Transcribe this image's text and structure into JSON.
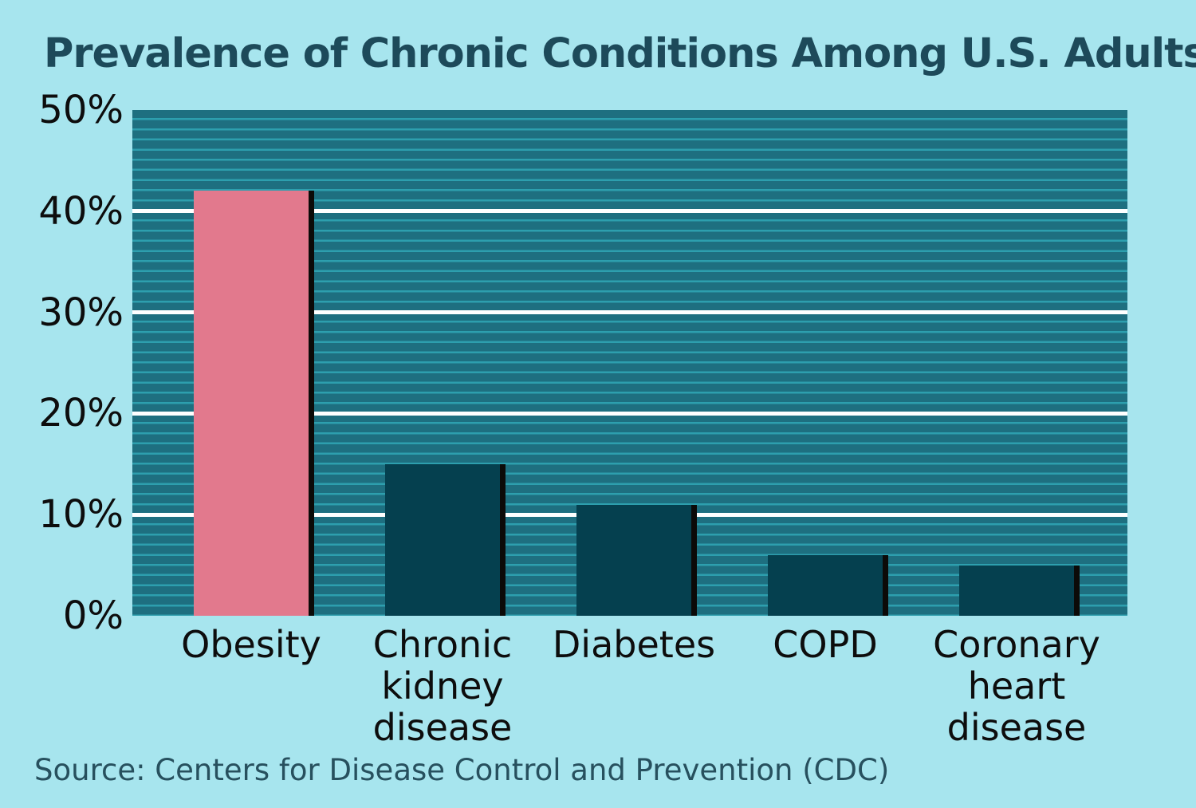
{
  "page": {
    "background_color": "#a7e5ee"
  },
  "header": {
    "title": "Prevalence of Chronic Conditions Among U.S. Adults",
    "title_color": "#1d4a5a"
  },
  "footer": {
    "source": "Source: Centers for Disease Control and Prevention (CDC)",
    "source_color": "#27505e"
  },
  "chart_data": {
    "type": "bar",
    "title": "Prevalence of Chronic Conditions Among U.S. Adults",
    "xlabel": "",
    "ylabel": "",
    "categories": [
      "Obesity",
      "Chronic kidney disease",
      "Diabetes",
      "COPD",
      "Coronary heart disease"
    ],
    "category_label_lines": [
      [
        "Obesity"
      ],
      [
        "Chronic",
        "kidney",
        "disease"
      ],
      [
        "Diabetes"
      ],
      [
        "COPD"
      ],
      [
        "Coronary",
        "heart",
        "disease"
      ]
    ],
    "values": [
      42,
      15,
      11,
      6,
      5
    ],
    "unit": "%",
    "ylim": [
      0,
      50
    ],
    "ytick_step": 10,
    "ytick_labels": [
      "0%",
      "10%",
      "20%",
      "30%",
      "40%",
      "50%"
    ],
    "grid": "horizontal white lines at 10% steps, behind bars",
    "legend": "none",
    "colors": {
      "plot_background": "#1e6f80",
      "plot_stripe": "#2d9fae",
      "gridline": "#ffffff",
      "highlight_bar": "#e2798d",
      "default_bar": "#05404f",
      "bar_shadow": "#0c0a08",
      "axis_text": "#0d0d0d"
    },
    "bar_colors": [
      "#e2798d",
      "#05404f",
      "#05404f",
      "#05404f",
      "#05404f"
    ]
  }
}
